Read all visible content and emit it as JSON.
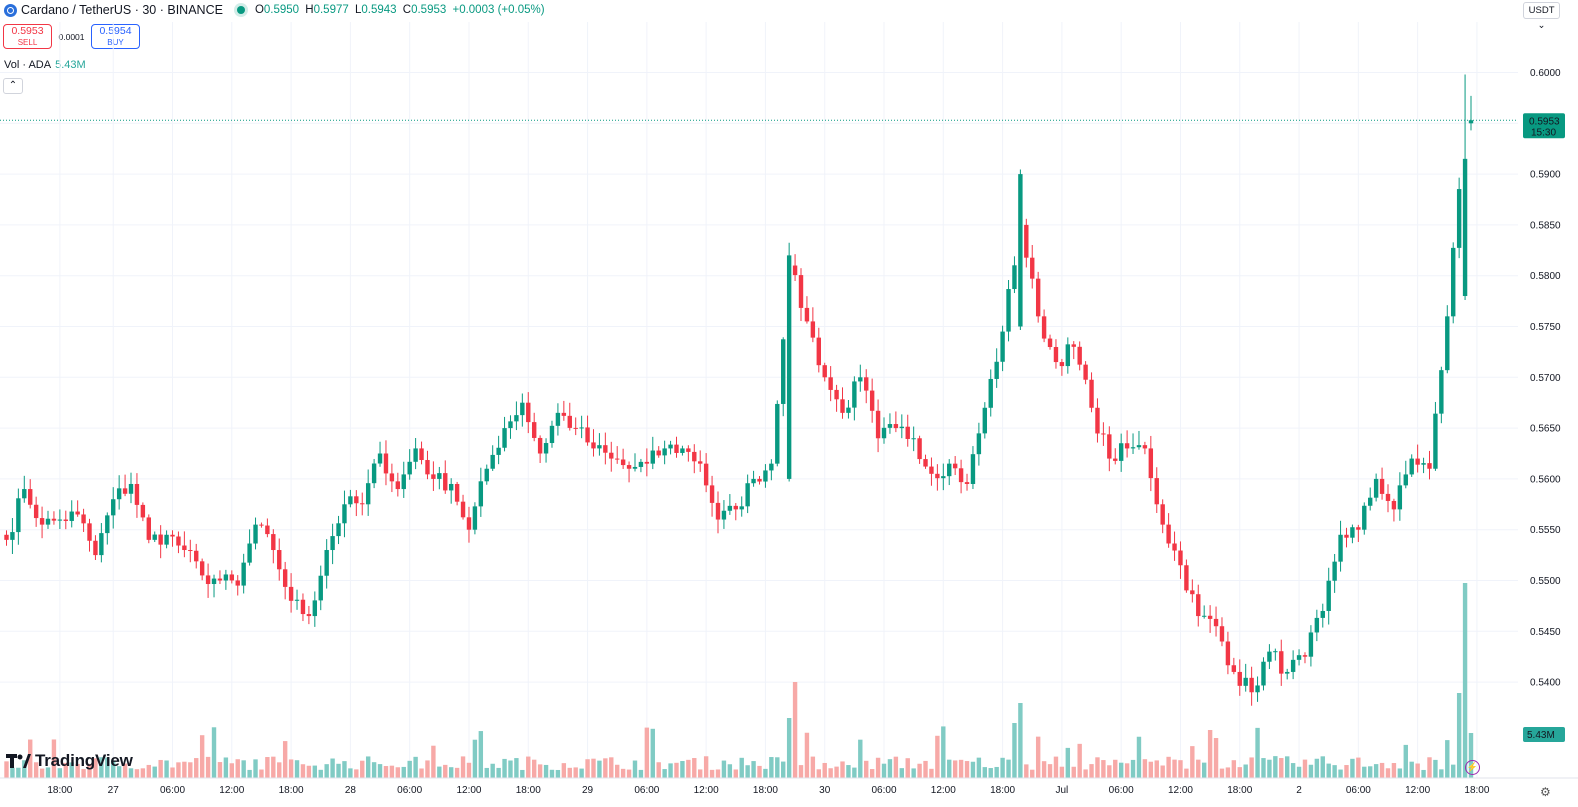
{
  "header": {
    "symbol": "Cardano",
    "pair": "TetherUS",
    "interval": "30",
    "exchange": "BINANCE",
    "title_text": "Cardano / TetherUS · 30 · BINANCE",
    "ohlc": {
      "o_label": "O",
      "o": "0.5950",
      "h_label": "H",
      "h": "0.5977",
      "l_label": "L",
      "l": "0.5943",
      "c_label": "C",
      "c": "0.5953",
      "change": "+0.0003 (+0.05%)"
    }
  },
  "trade": {
    "sell_price": "0.5953",
    "sell_label": "SELL",
    "spread": "0.0001",
    "buy_price": "0.5954",
    "buy_label": "BUY"
  },
  "volume_legend": {
    "label": "Vol · ADA",
    "value": "5.43M"
  },
  "currency_selector": "USDT",
  "collapse_icon": "chevron-up-icon",
  "logo_text": "TradingView",
  "colors": {
    "up": "#089981",
    "down": "#f23645",
    "vol_up": "#80cbc4",
    "vol_down": "#f7a9a7",
    "last_price": "#089981"
  },
  "chart_data": {
    "type": "candlestick",
    "ylim": [
      0.5365,
      0.606
    ],
    "y_ticks": [
      "0.6000",
      "0.5950",
      "0.5900",
      "0.5850",
      "0.5800",
      "0.5750",
      "0.5700",
      "0.5650",
      "0.5600",
      "0.5550",
      "0.5500",
      "0.5450",
      "0.5400"
    ],
    "y_tick_values": [
      0.6,
      0.595,
      0.59,
      0.585,
      0.58,
      0.575,
      0.57,
      0.565,
      0.56,
      0.555,
      0.55,
      0.545,
      0.54
    ],
    "x_ticks": [
      "18:00",
      "27",
      "06:00",
      "12:00",
      "18:00",
      "28",
      "06:00",
      "12:00",
      "18:00",
      "29",
      "06:00",
      "12:00",
      "18:00",
      "30",
      "06:00",
      "12:00",
      "18:00",
      "Jul",
      "06:00",
      "12:00",
      "18:00",
      "2",
      "06:00",
      "12:00",
      "18:00"
    ],
    "x_tick_index": [
      9,
      18,
      28,
      38,
      48,
      58,
      68,
      78,
      88,
      98,
      108,
      118,
      128,
      138,
      148,
      158,
      168,
      178,
      188,
      198,
      208,
      218,
      228,
      238,
      248
    ],
    "last_price": "0.5953",
    "last_price_value": 0.5953,
    "countdown": "15:30",
    "volume_last": "5.43M",
    "hidden_tick_label": "0.5950",
    "anchors": [
      [
        0,
        0.5545,
        0.554
      ],
      [
        3,
        0.556,
        0.559
      ],
      [
        6,
        0.558,
        0.5555
      ],
      [
        9,
        0.5575,
        0.556
      ],
      [
        12,
        0.562,
        0.5565
      ],
      [
        15,
        0.556,
        0.5525
      ],
      [
        18,
        0.56,
        0.558
      ],
      [
        21,
        0.561,
        0.5595
      ],
      [
        24,
        0.5575,
        0.554
      ],
      [
        27,
        0.5575,
        0.5545
      ],
      [
        30,
        0.556,
        0.553
      ],
      [
        33,
        0.5535,
        0.5505
      ],
      [
        36,
        0.5535,
        0.55
      ],
      [
        39,
        0.552,
        0.5495
      ],
      [
        42,
        0.558,
        0.5555
      ],
      [
        45,
        0.556,
        0.553
      ],
      [
        48,
        0.553,
        0.548
      ],
      [
        51,
        0.551,
        0.5465
      ],
      [
        54,
        0.5555,
        0.553
      ],
      [
        57,
        0.5595,
        0.5575
      ],
      [
        60,
        0.561,
        0.5575
      ],
      [
        63,
        0.5615,
        0.5625
      ],
      [
        66,
        0.5595,
        0.559
      ],
      [
        69,
        0.56,
        0.563
      ],
      [
        72,
        0.562,
        0.56
      ],
      [
        75,
        0.56,
        0.5595
      ],
      [
        78,
        0.559,
        0.555
      ],
      [
        81,
        0.5595,
        0.561
      ],
      [
        84,
        0.564,
        0.565
      ],
      [
        87,
        0.568,
        0.5675
      ],
      [
        90,
        0.5665,
        0.5625
      ],
      [
        93,
        0.567,
        0.5665
      ],
      [
        96,
        0.567,
        0.565
      ],
      [
        99,
        0.564,
        0.563
      ],
      [
        102,
        0.563,
        0.562
      ],
      [
        105,
        0.5615,
        0.561
      ],
      [
        108,
        0.562,
        0.5615
      ],
      [
        111,
        0.5645,
        0.563
      ],
      [
        114,
        0.565,
        0.563
      ],
      [
        117,
        0.5645,
        0.5615
      ],
      [
        120,
        0.56,
        0.556
      ],
      [
        123,
        0.5565,
        0.557
      ],
      [
        126,
        0.558,
        0.56
      ],
      [
        129,
        0.56,
        0.5615
      ],
      [
        132,
        0.582,
        0.581
      ],
      [
        135,
        0.578,
        0.5755
      ],
      [
        138,
        0.574,
        0.57
      ],
      [
        141,
        0.568,
        0.5665
      ],
      [
        144,
        0.569,
        0.57
      ],
      [
        147,
        0.5675,
        0.564
      ],
      [
        150,
        0.568,
        0.565
      ],
      [
        153,
        0.565,
        0.564
      ],
      [
        156,
        0.562,
        0.5605
      ],
      [
        159,
        0.564,
        0.5615
      ],
      [
        162,
        0.562,
        0.5595
      ],
      [
        165,
        0.5655,
        0.567
      ],
      [
        168,
        0.5735,
        0.5745
      ],
      [
        171,
        0.59,
        0.585
      ],
      [
        174,
        0.579,
        0.576
      ],
      [
        177,
        0.573,
        0.5715
      ],
      [
        180,
        0.574,
        0.573
      ],
      [
        183,
        0.569,
        0.567
      ],
      [
        186,
        0.5635,
        0.562
      ],
      [
        189,
        0.564,
        0.563
      ],
      [
        192,
        0.564,
        0.563
      ],
      [
        195,
        0.561,
        0.5555
      ],
      [
        198,
        0.553,
        0.5515
      ],
      [
        201,
        0.5465,
        0.5465
      ],
      [
        204,
        0.5495,
        0.5455
      ],
      [
        207,
        0.543,
        0.541
      ],
      [
        210,
        0.541,
        0.539
      ],
      [
        213,
        0.542,
        0.543
      ],
      [
        216,
        0.542,
        0.541
      ],
      [
        219,
        0.543,
        0.5425
      ],
      [
        222,
        0.545,
        0.547
      ],
      [
        225,
        0.553,
        0.5545
      ],
      [
        228,
        0.555,
        0.555
      ],
      [
        231,
        0.558,
        0.56
      ],
      [
        234,
        0.557,
        0.557
      ],
      [
        237,
        0.56,
        0.562
      ],
      [
        240,
        0.5605,
        0.561
      ],
      [
        243,
        0.569,
        0.576
      ],
      [
        246,
        0.591,
        0.595
      ],
      [
        247,
        0.595,
        0.5953
      ]
    ]
  }
}
